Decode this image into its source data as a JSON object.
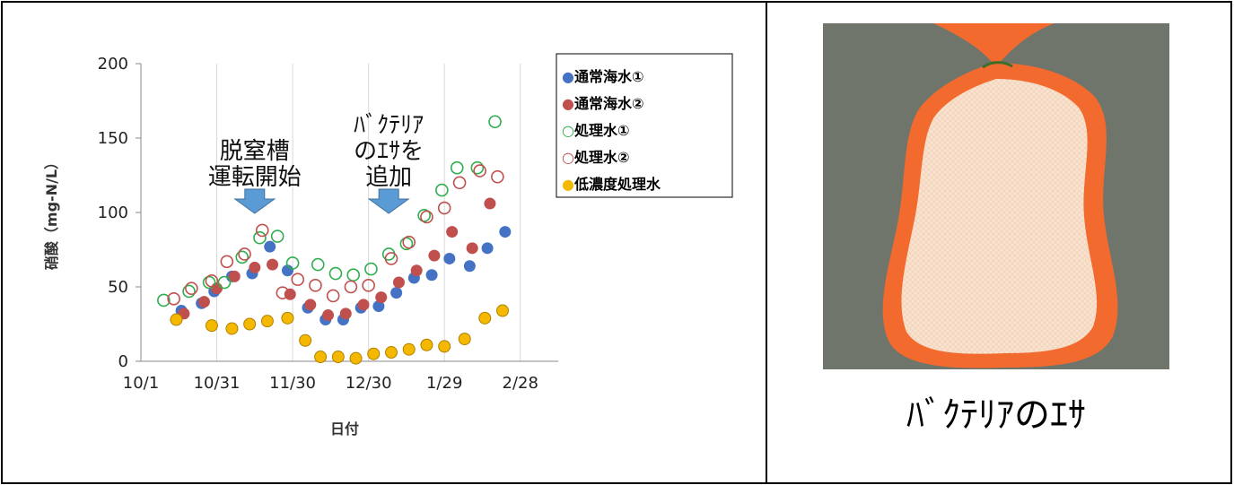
{
  "chart_data": {
    "type": "scatter",
    "xlabel": "日付",
    "ylabel": "硝酸（mg-N/L）",
    "ylim": [
      0,
      200
    ],
    "yticks": [
      "0",
      "50",
      "100",
      "150",
      "200"
    ],
    "xlim": [
      "10/1",
      "3/15"
    ],
    "xticks": [
      {
        "label": "10/1",
        "date": "10/1"
      },
      {
        "label": "10/31",
        "date": "10/31"
      },
      {
        "label": "11/30",
        "date": "11/30"
      },
      {
        "label": "12/30",
        "date": "12/30"
      },
      {
        "label": "1/29",
        "date": "1/29"
      },
      {
        "label": "2/28",
        "date": "2/28"
      }
    ],
    "grid": "vertical",
    "legend_position": "right",
    "series": [
      {
        "name": "●通常海水①",
        "color": "#4472C4",
        "marker": "filled",
        "points": [
          [
            "10/17",
            34
          ],
          [
            "10/25",
            39
          ],
          [
            "10/30",
            47
          ],
          [
            "11/6",
            57
          ],
          [
            "11/14",
            59
          ],
          [
            "11/21",
            77
          ],
          [
            "11/28",
            61
          ],
          [
            "12/6",
            36
          ],
          [
            "12/13",
            28
          ],
          [
            "12/20",
            28
          ],
          [
            "12/27",
            36
          ],
          [
            "1/3",
            37
          ],
          [
            "1/10",
            46
          ],
          [
            "1/17",
            56
          ],
          [
            "1/24",
            58
          ],
          [
            "1/31",
            69
          ],
          [
            "2/8",
            64
          ],
          [
            "2/15",
            76
          ],
          [
            "2/22",
            87
          ]
        ]
      },
      {
        "name": "●通常海水②",
        "color": "#C0504D",
        "marker": "filled",
        "points": [
          [
            "10/18",
            32
          ],
          [
            "10/26",
            40
          ],
          [
            "10/31",
            49
          ],
          [
            "11/7",
            57
          ],
          [
            "11/15",
            63
          ],
          [
            "11/22",
            65
          ],
          [
            "11/29",
            45
          ],
          [
            "12/7",
            38
          ],
          [
            "12/14",
            31
          ],
          [
            "12/21",
            32
          ],
          [
            "12/28",
            38
          ],
          [
            "1/4",
            43
          ],
          [
            "1/11",
            53
          ],
          [
            "1/18",
            61
          ],
          [
            "1/25",
            71
          ],
          [
            "2/1",
            87
          ],
          [
            "2/9",
            76
          ],
          [
            "2/16",
            106
          ]
        ]
      },
      {
        "name": "○処理水①",
        "color": "#2EAE4E",
        "marker": "open",
        "points": [
          [
            "10/10",
            41
          ],
          [
            "10/20",
            47
          ],
          [
            "10/28",
            53
          ],
          [
            "11/3",
            53
          ],
          [
            "11/10",
            70
          ],
          [
            "11/17",
            83
          ],
          [
            "11/24",
            84
          ],
          [
            "11/30",
            66
          ],
          [
            "12/10",
            65
          ],
          [
            "12/17",
            59
          ],
          [
            "12/24",
            58
          ],
          [
            "12/31",
            62
          ],
          [
            "1/7",
            72
          ],
          [
            "1/14",
            79
          ],
          [
            "1/21",
            98
          ],
          [
            "1/28",
            115
          ],
          [
            "2/3",
            130
          ],
          [
            "2/11",
            130
          ],
          [
            "2/18",
            161
          ]
        ]
      },
      {
        "name": "○処理水②",
        "color": "#C0504D",
        "marker": "open",
        "points": [
          [
            "10/14",
            42
          ],
          [
            "10/21",
            49
          ],
          [
            "10/29",
            54
          ],
          [
            "11/4",
            67
          ],
          [
            "11/11",
            72
          ],
          [
            "11/18",
            88
          ],
          [
            "11/26",
            46
          ],
          [
            "12/2",
            55
          ],
          [
            "12/9",
            51
          ],
          [
            "12/16",
            44
          ],
          [
            "12/23",
            50
          ],
          [
            "12/30",
            51
          ],
          [
            "1/8",
            69
          ],
          [
            "1/15",
            80
          ],
          [
            "1/22",
            97
          ],
          [
            "1/29",
            103
          ],
          [
            "2/4",
            120
          ],
          [
            "2/12",
            128
          ],
          [
            "2/19",
            124
          ]
        ]
      },
      {
        "name": "●低濃度処理水",
        "color": "#F5B800",
        "marker": "filled-outline",
        "points": [
          [
            "10/15",
            28
          ],
          [
            "10/29",
            24
          ],
          [
            "11/6",
            22
          ],
          [
            "11/13",
            25
          ],
          [
            "11/20",
            27
          ],
          [
            "11/28",
            29
          ],
          [
            "12/5",
            14
          ],
          [
            "12/11",
            3
          ],
          [
            "12/18",
            3
          ],
          [
            "12/25",
            2
          ],
          [
            "1/1",
            5
          ],
          [
            "1/8",
            6
          ],
          [
            "1/15",
            8
          ],
          [
            "1/22",
            11
          ],
          [
            "1/29",
            10
          ],
          [
            "2/6",
            15
          ],
          [
            "2/14",
            29
          ],
          [
            "2/21",
            34
          ]
        ]
      }
    ],
    "annotations": [
      {
        "lines": [
          "脱窒槽",
          "運転開始"
        ],
        "arrow_date": "11/15"
      },
      {
        "lines": [
          "ﾊﾞｸﾃﾘｱ",
          "のｴｻを",
          "追加"
        ],
        "arrow_date": "1/7"
      }
    ]
  },
  "photo": {
    "label": "ﾊﾞｸﾃﾘｱのｴｻ",
    "background_color": "#6b7068",
    "net_color": "#F26A2E",
    "content_color": "#F7E3CF"
  }
}
